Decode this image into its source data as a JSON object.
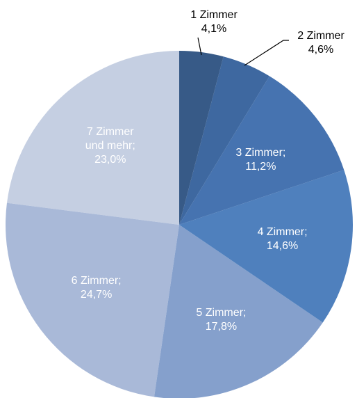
{
  "chart_data": {
    "type": "pie",
    "categories": [
      "1 Zimmer",
      "2 Zimmer",
      "3 Zimmer;",
      "4 Zimmer;",
      "5 Zimmer;",
      "6 Zimmer;",
      "7 Zimmer und mehr;"
    ],
    "values": [
      4.1,
      4.6,
      11.2,
      14.6,
      17.8,
      24.7,
      23.0
    ],
    "value_labels": [
      "4,1%",
      "4,6%",
      "11,2%",
      "14,6%",
      "17,8%",
      "24,7%",
      "23,0%"
    ],
    "colors": [
      "#375a87",
      "#3e68a0",
      "#4673b0",
      "#4f80bd",
      "#85a0cc",
      "#a9b9d8",
      "#c5cfe2"
    ]
  }
}
